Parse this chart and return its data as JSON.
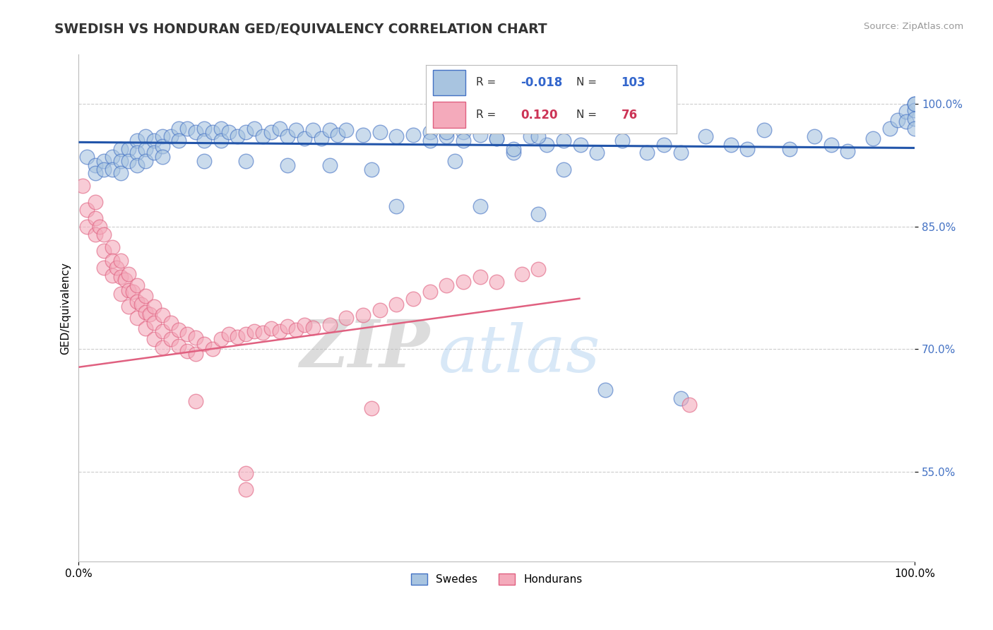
{
  "title": "SWEDISH VS HONDURAN GED/EQUIVALENCY CORRELATION CHART",
  "source_text": "Source: ZipAtlas.com",
  "ylabel": "GED/Equivalency",
  "xlim": [
    0.0,
    1.0
  ],
  "ylim": [
    0.44,
    1.06
  ],
  "yticks": [
    0.55,
    0.7,
    0.85,
    1.0
  ],
  "ytick_labels": [
    "55.0%",
    "70.0%",
    "85.0%",
    "100.0%"
  ],
  "xticks": [
    0.0,
    1.0
  ],
  "xtick_labels": [
    "0.0%",
    "100.0%"
  ],
  "blue_face_color": "#A8C4E0",
  "blue_edge_color": "#4472C4",
  "pink_face_color": "#F4AABB",
  "pink_edge_color": "#E06080",
  "blue_line_color": "#2255AA",
  "pink_line_color": "#E06080",
  "legend_R_blue": "-0.018",
  "legend_N_blue": "103",
  "legend_R_pink": "0.120",
  "legend_N_pink": "76",
  "legend_label_blue": "Swedes",
  "legend_label_pink": "Hondurans",
  "watermark_zip": "ZIP",
  "watermark_atlas": "atlas",
  "blue_scatter_x": [
    0.01,
    0.02,
    0.02,
    0.03,
    0.03,
    0.04,
    0.04,
    0.05,
    0.05,
    0.05,
    0.06,
    0.06,
    0.07,
    0.07,
    0.07,
    0.08,
    0.08,
    0.08,
    0.09,
    0.09,
    0.1,
    0.1,
    0.1,
    0.11,
    0.12,
    0.12,
    0.13,
    0.14,
    0.15,
    0.15,
    0.16,
    0.17,
    0.17,
    0.18,
    0.19,
    0.2,
    0.21,
    0.22,
    0.23,
    0.24,
    0.25,
    0.26,
    0.27,
    0.28,
    0.29,
    0.3,
    0.31,
    0.32,
    0.34,
    0.36,
    0.38,
    0.4,
    0.42,
    0.44,
    0.46,
    0.48,
    0.5,
    0.52,
    0.54,
    0.56,
    0.42,
    0.44,
    0.46,
    0.5,
    0.52,
    0.55,
    0.58,
    0.6,
    0.62,
    0.65,
    0.68,
    0.7,
    0.72,
    0.75,
    0.78,
    0.8,
    0.82,
    0.85,
    0.88,
    0.9,
    0.92,
    0.95,
    0.97,
    0.98,
    0.99,
    0.99,
    1.0,
    1.0,
    1.0,
    1.0,
    1.0,
    0.63,
    0.72,
    0.58,
    0.45,
    0.35,
    0.3,
    0.25,
    0.2,
    0.15,
    0.38,
    0.48,
    0.55
  ],
  "blue_scatter_y": [
    0.935,
    0.925,
    0.915,
    0.93,
    0.92,
    0.935,
    0.92,
    0.945,
    0.93,
    0.915,
    0.945,
    0.93,
    0.955,
    0.94,
    0.925,
    0.96,
    0.945,
    0.93,
    0.955,
    0.94,
    0.96,
    0.948,
    0.935,
    0.96,
    0.97,
    0.955,
    0.97,
    0.965,
    0.97,
    0.955,
    0.965,
    0.97,
    0.955,
    0.965,
    0.96,
    0.965,
    0.97,
    0.96,
    0.965,
    0.97,
    0.96,
    0.968,
    0.958,
    0.968,
    0.958,
    0.968,
    0.962,
    0.968,
    0.962,
    0.965,
    0.96,
    0.962,
    0.965,
    0.96,
    0.965,
    0.962,
    0.958,
    0.94,
    0.96,
    0.95,
    0.955,
    0.965,
    0.955,
    0.958,
    0.945,
    0.96,
    0.955,
    0.95,
    0.94,
    0.955,
    0.94,
    0.95,
    0.94,
    0.96,
    0.95,
    0.945,
    0.968,
    0.945,
    0.96,
    0.95,
    0.942,
    0.958,
    0.97,
    0.98,
    0.99,
    0.978,
    1.0,
    0.992,
    0.982,
    0.97,
    1.0,
    0.65,
    0.64,
    0.92,
    0.93,
    0.92,
    0.925,
    0.925,
    0.93,
    0.93,
    0.875,
    0.875,
    0.865
  ],
  "pink_scatter_x": [
    0.005,
    0.01,
    0.01,
    0.02,
    0.02,
    0.02,
    0.025,
    0.03,
    0.03,
    0.03,
    0.04,
    0.04,
    0.04,
    0.045,
    0.05,
    0.05,
    0.05,
    0.055,
    0.06,
    0.06,
    0.06,
    0.065,
    0.07,
    0.07,
    0.07,
    0.075,
    0.08,
    0.08,
    0.08,
    0.085,
    0.09,
    0.09,
    0.09,
    0.1,
    0.1,
    0.1,
    0.11,
    0.11,
    0.12,
    0.12,
    0.13,
    0.13,
    0.14,
    0.14,
    0.15,
    0.16,
    0.17,
    0.18,
    0.19,
    0.2,
    0.21,
    0.22,
    0.23,
    0.24,
    0.25,
    0.26,
    0.27,
    0.28,
    0.3,
    0.32,
    0.34,
    0.36,
    0.38,
    0.4,
    0.42,
    0.44,
    0.46,
    0.48,
    0.5,
    0.53,
    0.55,
    0.14,
    0.2,
    0.2,
    0.35,
    0.73
  ],
  "pink_scatter_y": [
    0.9,
    0.87,
    0.85,
    0.88,
    0.86,
    0.84,
    0.85,
    0.84,
    0.82,
    0.8,
    0.825,
    0.808,
    0.79,
    0.8,
    0.808,
    0.788,
    0.768,
    0.785,
    0.792,
    0.772,
    0.752,
    0.77,
    0.778,
    0.758,
    0.738,
    0.755,
    0.765,
    0.745,
    0.725,
    0.743,
    0.752,
    0.732,
    0.712,
    0.742,
    0.722,
    0.702,
    0.732,
    0.712,
    0.724,
    0.704,
    0.718,
    0.698,
    0.714,
    0.694,
    0.706,
    0.7,
    0.712,
    0.718,
    0.715,
    0.718,
    0.722,
    0.72,
    0.725,
    0.722,
    0.728,
    0.724,
    0.73,
    0.726,
    0.73,
    0.738,
    0.742,
    0.748,
    0.755,
    0.762,
    0.77,
    0.778,
    0.782,
    0.788,
    0.782,
    0.792,
    0.798,
    0.636,
    0.548,
    0.528,
    0.628,
    0.632
  ],
  "pink_trend_x": [
    0.0,
    0.6
  ],
  "pink_trend_y_start": 0.678,
  "pink_trend_y_end": 0.762,
  "blue_trend_x": [
    0.0,
    1.0
  ],
  "blue_trend_y_start": 0.953,
  "blue_trend_y_end": 0.946
}
